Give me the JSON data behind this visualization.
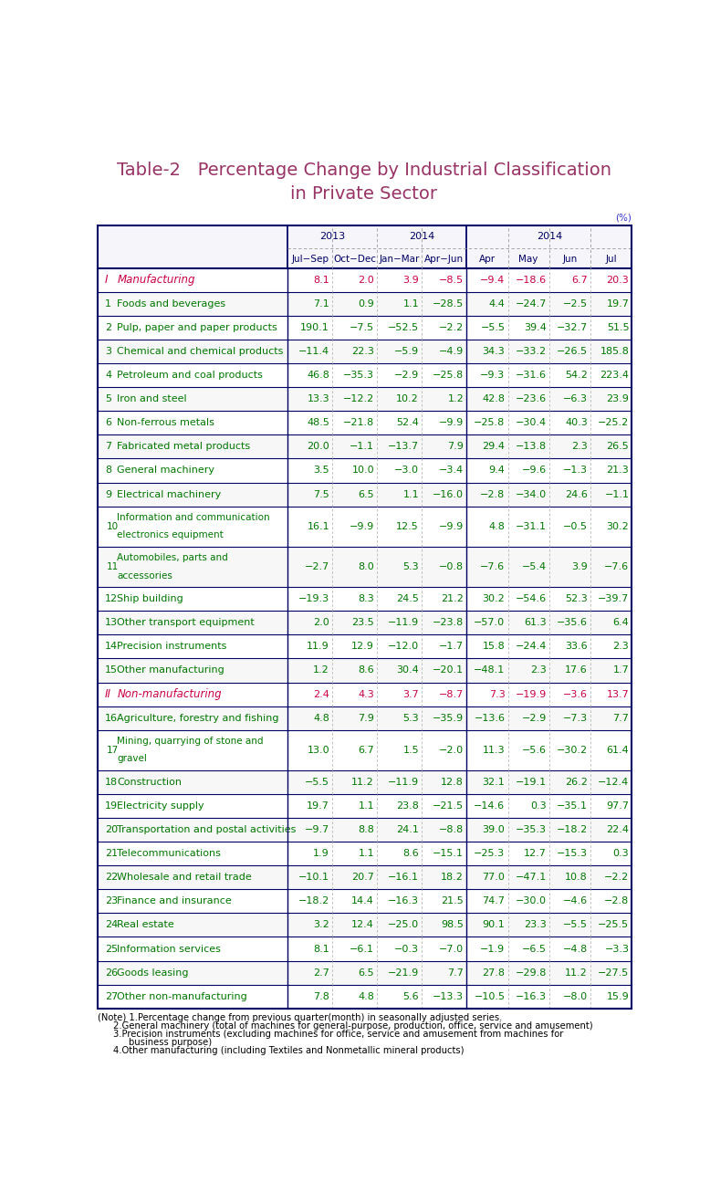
{
  "title_line1": "Table-2   Percentage Change by Industrial Classification",
  "title_line2": "in Private Sector",
  "title_color": "#993366",
  "unit_label": "(%)",
  "unit_color": "#3333cc",
  "rows": [
    {
      "num": "I",
      "label": "Manufacturing",
      "type": "section",
      "color": "#cc0044",
      "values": [
        "8.1",
        "2.0",
        "3.9",
        "−8.5",
        "−9.4",
        "−18.6",
        "6.7",
        "20.3"
      ]
    },
    {
      "num": "1",
      "label": "Foods and beverages",
      "type": "item",
      "color": "#007700",
      "values": [
        "7.1",
        "0.9",
        "1.1",
        "−28.5",
        "4.4",
        "−24.7",
        "−2.5",
        "19.7"
      ]
    },
    {
      "num": "2",
      "label": "Pulp, paper and paper products",
      "type": "item",
      "color": "#007700",
      "values": [
        "190.1",
        "−7.5",
        "−52.5",
        "−2.2",
        "−5.5",
        "39.4",
        "−32.7",
        "51.5"
      ]
    },
    {
      "num": "3",
      "label": "Chemical and chemical products",
      "type": "item",
      "color": "#007700",
      "values": [
        "−11.4",
        "22.3",
        "−5.9",
        "−4.9",
        "34.3",
        "−33.2",
        "−26.5",
        "185.8"
      ]
    },
    {
      "num": "4",
      "label": "Petroleum and coal products",
      "type": "item",
      "color": "#007700",
      "values": [
        "46.8",
        "−35.3",
        "−2.9",
        "−25.8",
        "−9.3",
        "−31.6",
        "54.2",
        "223.4"
      ]
    },
    {
      "num": "5",
      "label": "Iron and steel",
      "type": "item",
      "color": "#007700",
      "values": [
        "13.3",
        "−12.2",
        "10.2",
        "1.2",
        "42.8",
        "−23.6",
        "−6.3",
        "23.9"
      ]
    },
    {
      "num": "6",
      "label": "Non-ferrous metals",
      "type": "item",
      "color": "#007700",
      "values": [
        "48.5",
        "−21.8",
        "52.4",
        "−9.9",
        "−25.8",
        "−30.4",
        "40.3",
        "−25.2"
      ]
    },
    {
      "num": "7",
      "label": "Fabricated metal products",
      "type": "item",
      "color": "#007700",
      "values": [
        "20.0",
        "−1.1",
        "−13.7",
        "7.9",
        "29.4",
        "−13.8",
        "2.3",
        "26.5"
      ]
    },
    {
      "num": "8",
      "label": "General machinery",
      "type": "item",
      "color": "#007700",
      "values": [
        "3.5",
        "10.0",
        "−3.0",
        "−3.4",
        "9.4",
        "−9.6",
        "−1.3",
        "21.3"
      ]
    },
    {
      "num": "9",
      "label": "Electrical machinery",
      "type": "item",
      "color": "#007700",
      "values": [
        "7.5",
        "6.5",
        "1.1",
        "−16.0",
        "−2.8",
        "−34.0",
        "24.6",
        "−1.1"
      ]
    },
    {
      "num": "10",
      "label": "Information and communication\nelectronics equipment",
      "type": "item2",
      "color": "#007700",
      "values": [
        "16.1",
        "−9.9",
        "12.5",
        "−9.9",
        "4.8",
        "−31.1",
        "−0.5",
        "30.2"
      ]
    },
    {
      "num": "11",
      "label": "Automobiles, parts and\naccessories",
      "type": "item2",
      "color": "#007700",
      "values": [
        "−2.7",
        "8.0",
        "5.3",
        "−0.8",
        "−7.6",
        "−5.4",
        "3.9",
        "−7.6"
      ]
    },
    {
      "num": "12",
      "label": "Ship building",
      "type": "item",
      "color": "#007700",
      "values": [
        "−19.3",
        "8.3",
        "24.5",
        "21.2",
        "30.2",
        "−54.6",
        "52.3",
        "−39.7"
      ]
    },
    {
      "num": "13",
      "label": "Other transport equipment",
      "type": "item",
      "color": "#007700",
      "values": [
        "2.0",
        "23.5",
        "−11.9",
        "−23.8",
        "−57.0",
        "61.3",
        "−35.6",
        "6.4"
      ]
    },
    {
      "num": "14",
      "label": "Precision instruments",
      "type": "item",
      "color": "#007700",
      "values": [
        "11.9",
        "12.9",
        "−12.0",
        "−1.7",
        "15.8",
        "−24.4",
        "33.6",
        "2.3"
      ]
    },
    {
      "num": "15",
      "label": "Other manufacturing",
      "type": "item",
      "color": "#007700",
      "values": [
        "1.2",
        "8.6",
        "30.4",
        "−20.1",
        "−48.1",
        "2.3",
        "17.6",
        "1.7"
      ]
    },
    {
      "num": "II",
      "label": "Non-manufacturing",
      "type": "section",
      "color": "#cc0044",
      "values": [
        "2.4",
        "4.3",
        "3.7",
        "−8.7",
        "7.3",
        "−19.9",
        "−3.6",
        "13.7"
      ]
    },
    {
      "num": "16",
      "label": "Agriculture, forestry and fishing",
      "type": "item",
      "color": "#007700",
      "values": [
        "4.8",
        "7.9",
        "5.3",
        "−35.9",
        "−13.6",
        "−2.9",
        "−7.3",
        "7.7"
      ]
    },
    {
      "num": "17",
      "label": "Mining, quarrying of stone and\ngravel",
      "type": "item2",
      "color": "#007700",
      "values": [
        "13.0",
        "6.7",
        "1.5",
        "−2.0",
        "11.3",
        "−5.6",
        "−30.2",
        "61.4"
      ]
    },
    {
      "num": "18",
      "label": "Construction",
      "type": "item",
      "color": "#007700",
      "values": [
        "−5.5",
        "11.2",
        "−11.9",
        "12.8",
        "32.1",
        "−19.1",
        "26.2",
        "−12.4"
      ]
    },
    {
      "num": "19",
      "label": "Electricity supply",
      "type": "item",
      "color": "#007700",
      "values": [
        "19.7",
        "1.1",
        "23.8",
        "−21.5",
        "−14.6",
        "0.3",
        "−35.1",
        "97.7"
      ]
    },
    {
      "num": "20",
      "label": "Transportation and postal activities",
      "type": "item",
      "color": "#007700",
      "values": [
        "−9.7",
        "8.8",
        "24.1",
        "−8.8",
        "39.0",
        "−35.3",
        "−18.2",
        "22.4"
      ]
    },
    {
      "num": "21",
      "label": "Telecommunications",
      "type": "item",
      "color": "#007700",
      "values": [
        "1.9",
        "1.1",
        "8.6",
        "−15.1",
        "−25.3",
        "12.7",
        "−15.3",
        "0.3"
      ]
    },
    {
      "num": "22",
      "label": "Wholesale and retail trade",
      "type": "item",
      "color": "#007700",
      "values": [
        "−10.1",
        "20.7",
        "−16.1",
        "18.2",
        "77.0",
        "−47.1",
        "10.8",
        "−2.2"
      ]
    },
    {
      "num": "23",
      "label": "Finance and insurance",
      "type": "item",
      "color": "#007700",
      "values": [
        "−18.2",
        "14.4",
        "−16.3",
        "21.5",
        "74.7",
        "−30.0",
        "−4.6",
        "−2.8"
      ]
    },
    {
      "num": "24",
      "label": "Real estate",
      "type": "item",
      "color": "#007700",
      "values": [
        "3.2",
        "12.4",
        "−25.0",
        "98.5",
        "90.1",
        "23.3",
        "−5.5",
        "−25.5"
      ]
    },
    {
      "num": "25",
      "label": "Information services",
      "type": "item",
      "color": "#007700",
      "values": [
        "8.1",
        "−6.1",
        "−0.3",
        "−7.0",
        "−1.9",
        "−6.5",
        "−4.8",
        "−3.3"
      ]
    },
    {
      "num": "26",
      "label": "Goods leasing",
      "type": "item",
      "color": "#007700",
      "values": [
        "2.7",
        "6.5",
        "−21.9",
        "7.7",
        "27.8",
        "−29.8",
        "11.2",
        "−27.5"
      ]
    },
    {
      "num": "27",
      "label": "Other non-manufacturing",
      "type": "item",
      "color": "#007700",
      "values": [
        "7.8",
        "4.8",
        "5.6",
        "−13.3",
        "−10.5",
        "−16.3",
        "−8.0",
        "15.9"
      ]
    }
  ],
  "notes": [
    "(Note) 1.Percentage change from previous quarter(month) in seasonally adjusted series.",
    "2.General machinery (total of machines for general-purpose, production, office, service and amusement)",
    "3.Precision instruments (excluding machines for office, service and amusement from machines for",
    "business purpose)",
    "4.Other manufacturing (including Textiles and Nonmetallic mineral products)"
  ],
  "border_color": "#000066",
  "header_text_color": "#000066"
}
